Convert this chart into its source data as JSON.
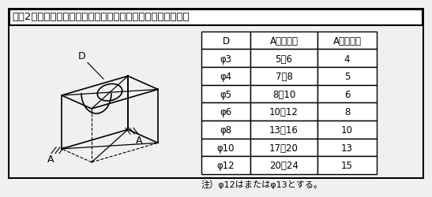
{
  "title": "【図2】両端より等しい距離にある場合のダウエルピンの配置",
  "table_headers": [
    "D",
    "A（標準）",
    "A（最小）"
  ],
  "table_rows": [
    [
      "φ3",
      "5～6",
      "4"
    ],
    [
      "φ4",
      "7～8",
      "5"
    ],
    [
      "φ5",
      "8～10",
      "6"
    ],
    [
      "φ6",
      "10～12",
      "8"
    ],
    [
      "φ8",
      "13～16",
      "10"
    ],
    [
      "φ10",
      "17～20",
      "13"
    ],
    [
      "φ12",
      "20～24",
      "15"
    ]
  ],
  "note": "注）φ12はまたはφ13とする。",
  "bg_color": "#f0f0f0",
  "border_color": "#000000",
  "text_color": "#000000",
  "label_D": "D",
  "label_A_left": "A",
  "label_A_right": "A"
}
